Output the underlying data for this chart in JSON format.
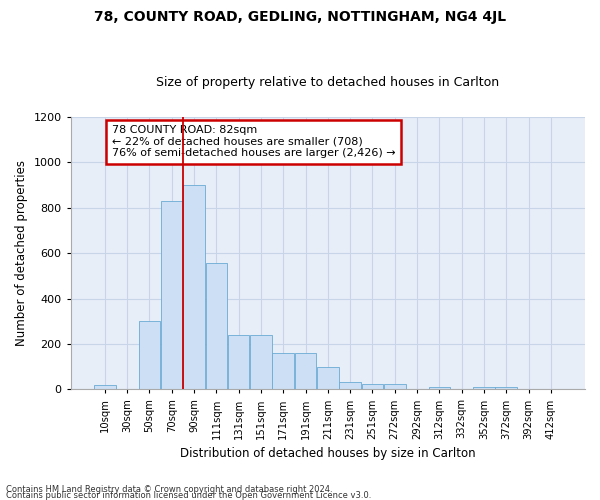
{
  "title": "78, COUNTY ROAD, GEDLING, NOTTINGHAM, NG4 4JL",
  "subtitle": "Size of property relative to detached houses in Carlton",
  "xlabel": "Distribution of detached houses by size in Carlton",
  "ylabel": "Number of detached properties",
  "categories": [
    "10sqm",
    "30sqm",
    "50sqm",
    "70sqm",
    "90sqm",
    "111sqm",
    "131sqm",
    "151sqm",
    "171sqm",
    "191sqm",
    "211sqm",
    "231sqm",
    "251sqm",
    "272sqm",
    "292sqm",
    "312sqm",
    "332sqm",
    "352sqm",
    "372sqm",
    "392sqm",
    "412sqm"
  ],
  "values": [
    20,
    0,
    300,
    830,
    900,
    555,
    240,
    240,
    160,
    160,
    100,
    30,
    22,
    22,
    0,
    10,
    0,
    8,
    8,
    0,
    0
  ],
  "bar_color": "#ccdff5",
  "bar_edge_color": "#6aaad4",
  "grid_color": "#c8d4e8",
  "background_color": "#e8eef8",
  "annotation_text": "78 COUNTY ROAD: 82sqm\n← 22% of detached houses are smaller (708)\n76% of semi-detached houses are larger (2,426) →",
  "annotation_box_color": "#ffffff",
  "annotation_border_color": "#cc0000",
  "footer_line1": "Contains HM Land Registry data © Crown copyright and database right 2024.",
  "footer_line2": "Contains public sector information licensed under the Open Government Licence v3.0.",
  "ylim": [
    0,
    1200
  ],
  "title_fontsize": 10,
  "subtitle_fontsize": 9
}
